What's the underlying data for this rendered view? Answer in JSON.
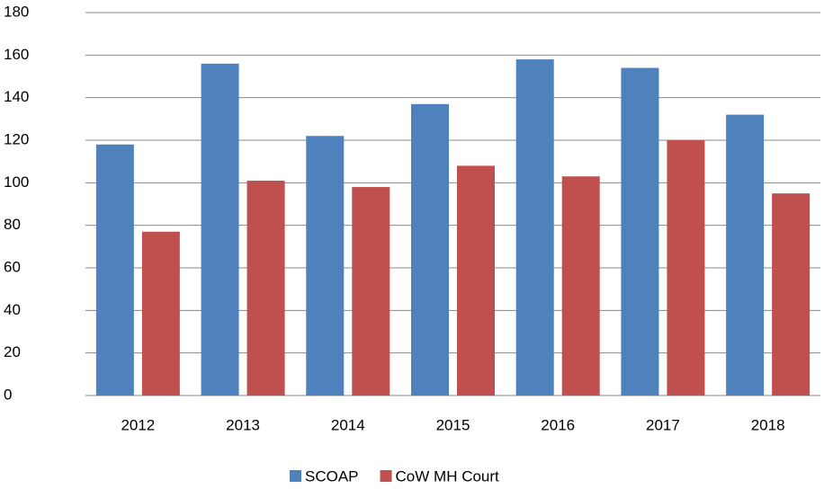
{
  "chart_data": {
    "type": "bar",
    "categories": [
      "2012",
      "2013",
      "2014",
      "2015",
      "2016",
      "2017",
      "2018"
    ],
    "series": [
      {
        "name": "SCOAP",
        "color": "#4f81bd",
        "values": [
          118,
          156,
          122,
          137,
          158,
          154,
          132
        ]
      },
      {
        "name": "CoW MH Court",
        "color": "#c0504d",
        "values": [
          77,
          101,
          98,
          108,
          103,
          120,
          95
        ]
      }
    ],
    "ylim": [
      0,
      180
    ],
    "yticks": [
      0,
      20,
      40,
      60,
      80,
      100,
      120,
      140,
      160,
      180
    ],
    "grid": true,
    "legend": "bottom"
  }
}
